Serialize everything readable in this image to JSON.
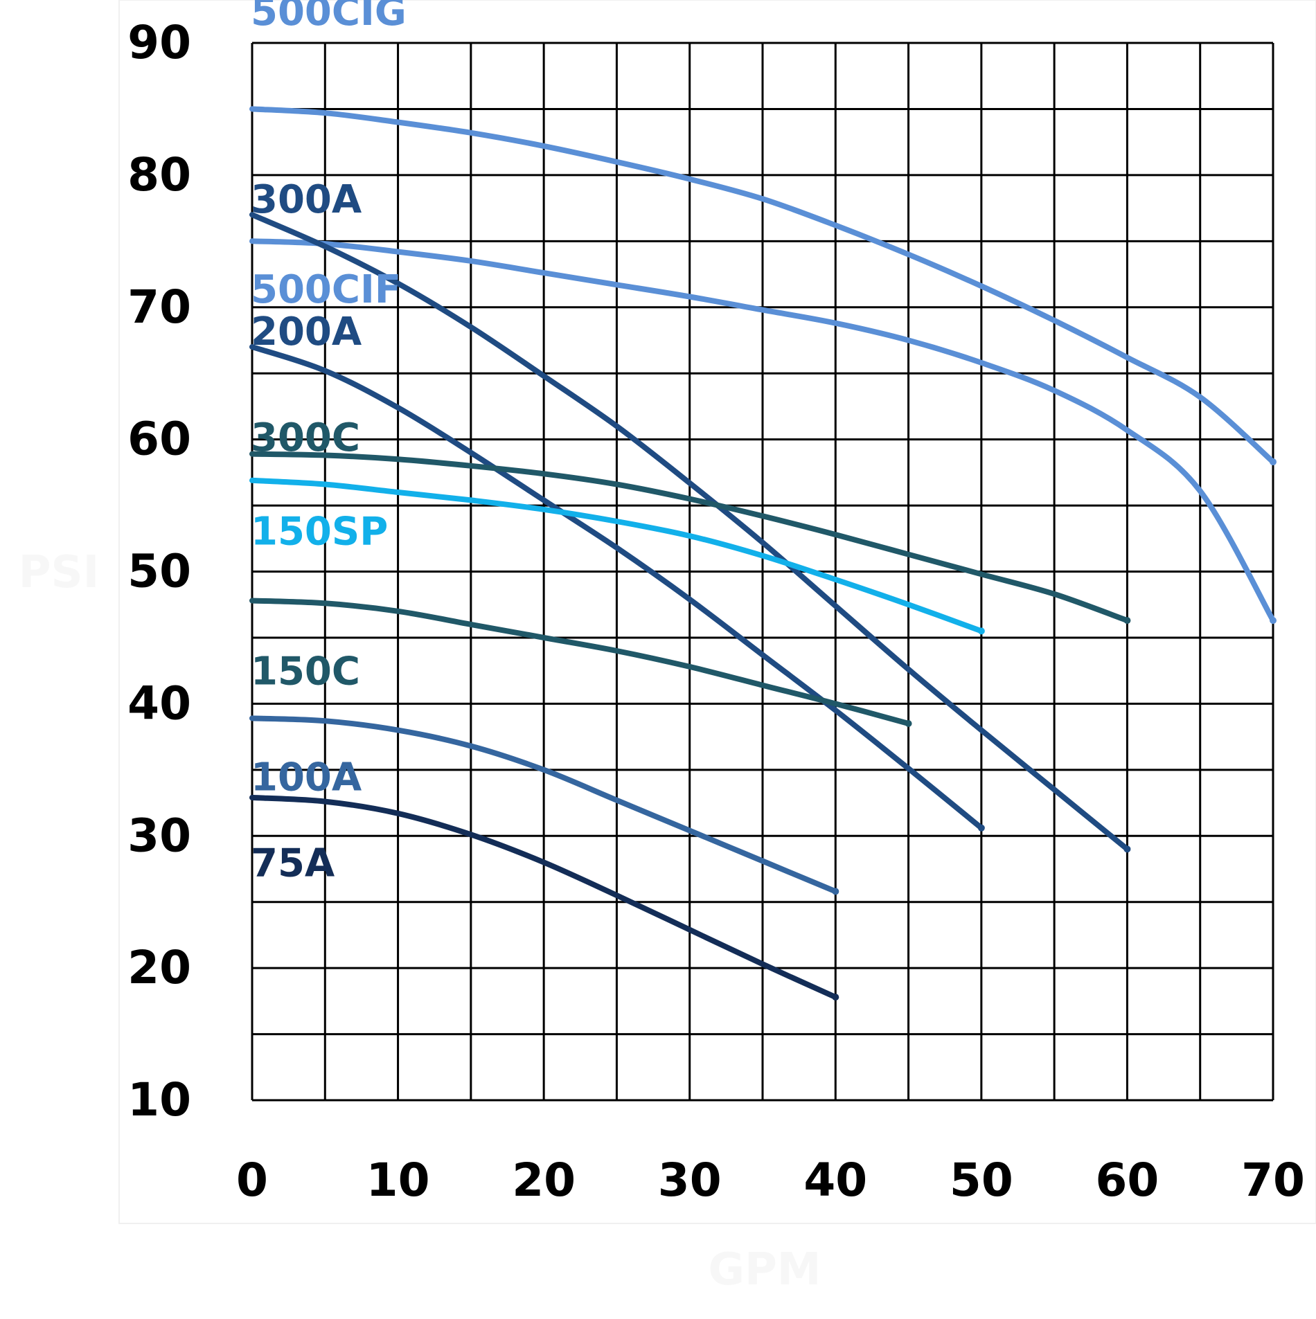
{
  "chart_data": {
    "type": "line",
    "title": "",
    "xlabel": "GPM",
    "ylabel": "PSI",
    "xlim": [
      0,
      70
    ],
    "ylim": [
      10,
      90
    ],
    "grid": true,
    "legend": "inline-labels",
    "x_ticks": [
      0,
      10,
      20,
      30,
      40,
      50,
      60,
      70
    ],
    "x_tick_labels": [
      "0",
      "10",
      "20",
      "30",
      "40",
      "50",
      "60",
      "70"
    ],
    "y_ticks": [
      10,
      20,
      30,
      40,
      50,
      60,
      70,
      80,
      90
    ],
    "y_tick_labels": [
      "10",
      "20",
      "30",
      "40",
      "50",
      "60",
      "70",
      "80",
      "90"
    ],
    "series": [
      {
        "name": "500CIG",
        "color": "#5a8fd6",
        "label_at": [
          0,
          92.4
        ],
        "points": [
          [
            0,
            85
          ],
          [
            5,
            84.7
          ],
          [
            10,
            84
          ],
          [
            15,
            83.2
          ],
          [
            20,
            82.2
          ],
          [
            25,
            81
          ],
          [
            30,
            79.7
          ],
          [
            35,
            78.2
          ],
          [
            40,
            76.2
          ],
          [
            45,
            74
          ],
          [
            50,
            71.6
          ],
          [
            55,
            69
          ],
          [
            60,
            66.2
          ],
          [
            65,
            63.2
          ],
          [
            70,
            58.3
          ]
        ]
      },
      {
        "name": "500CIF",
        "color": "#5a8fd6",
        "label_at": [
          0,
          71.4
        ],
        "points": [
          [
            0,
            75
          ],
          [
            5,
            74.8
          ],
          [
            10,
            74.2
          ],
          [
            15,
            73.5
          ],
          [
            20,
            72.6
          ],
          [
            25,
            71.7
          ],
          [
            30,
            70.8
          ],
          [
            35,
            69.8
          ],
          [
            40,
            68.8
          ],
          [
            45,
            67.5
          ],
          [
            50,
            65.8
          ],
          [
            55,
            63.7
          ],
          [
            60,
            60.7
          ],
          [
            65,
            56.1
          ],
          [
            70,
            46.3
          ]
        ]
      },
      {
        "name": "300A",
        "color": "#1f4b82",
        "label_at": [
          0,
          78.2
        ],
        "points": [
          [
            0,
            77
          ],
          [
            5,
            74.6
          ],
          [
            10,
            71.8
          ],
          [
            15,
            68.5
          ],
          [
            20,
            64.8
          ],
          [
            25,
            61
          ],
          [
            30,
            56.7
          ],
          [
            35,
            52.2
          ],
          [
            40,
            47.4
          ],
          [
            45,
            42.6
          ],
          [
            50,
            38
          ],
          [
            55,
            33.5
          ],
          [
            60,
            29
          ]
        ]
      },
      {
        "name": "200A",
        "color": "#1f4b82",
        "label_at": [
          0,
          68.2
        ],
        "points": [
          [
            0,
            67
          ],
          [
            5,
            65.2
          ],
          [
            10,
            62.4
          ],
          [
            15,
            59
          ],
          [
            20,
            55.4
          ],
          [
            25,
            51.8
          ],
          [
            30,
            47.9
          ],
          [
            35,
            43.7
          ],
          [
            40,
            39.5
          ],
          [
            45,
            35.1
          ],
          [
            50,
            30.6
          ]
        ]
      },
      {
        "name": "300C",
        "color": "#205868",
        "label_at": [
          0,
          60.2
        ],
        "points": [
          [
            0,
            58.9
          ],
          [
            5,
            58.8
          ],
          [
            10,
            58.5
          ],
          [
            15,
            58
          ],
          [
            20,
            57.4
          ],
          [
            25,
            56.6
          ],
          [
            30,
            55.5
          ],
          [
            35,
            54.2
          ],
          [
            40,
            52.8
          ],
          [
            45,
            51.3
          ],
          [
            50,
            49.8
          ],
          [
            55,
            48.3
          ],
          [
            60,
            46.3
          ]
        ]
      },
      {
        "name": "150SP",
        "color": "#12b0ea",
        "label_at": [
          0,
          53.1
        ],
        "points": [
          [
            0,
            56.9
          ],
          [
            5,
            56.6
          ],
          [
            10,
            56
          ],
          [
            15,
            55.4
          ],
          [
            20,
            54.7
          ],
          [
            25,
            53.8
          ],
          [
            30,
            52.7
          ],
          [
            35,
            51.2
          ],
          [
            40,
            49.4
          ],
          [
            45,
            47.5
          ],
          [
            50,
            45.5
          ]
        ]
      },
      {
        "name": "150C",
        "color": "#205868",
        "label_at": [
          0,
          42.5
        ],
        "points": [
          [
            0,
            47.8
          ],
          [
            5,
            47.6
          ],
          [
            10,
            47
          ],
          [
            15,
            46
          ],
          [
            20,
            45
          ],
          [
            25,
            44
          ],
          [
            30,
            42.8
          ],
          [
            35,
            41.4
          ],
          [
            40,
            40
          ],
          [
            45,
            38.5
          ]
        ]
      },
      {
        "name": "100A",
        "color": "#35669f",
        "label_at": [
          0,
          34.5
        ],
        "points": [
          [
            0,
            38.9
          ],
          [
            5,
            38.7
          ],
          [
            10,
            38
          ],
          [
            15,
            36.8
          ],
          [
            20,
            35
          ],
          [
            25,
            32.7
          ],
          [
            30,
            30.4
          ],
          [
            35,
            28.1
          ],
          [
            40,
            25.8
          ]
        ]
      },
      {
        "name": "75A",
        "color": "#132d57",
        "label_at": [
          0,
          28
        ],
        "points": [
          [
            0,
            32.9
          ],
          [
            5,
            32.6
          ],
          [
            10,
            31.7
          ],
          [
            15,
            30.1
          ],
          [
            20,
            28
          ],
          [
            25,
            25.5
          ],
          [
            30,
            22.9
          ],
          [
            35,
            20.3
          ],
          [
            40,
            17.8
          ]
        ]
      }
    ]
  }
}
